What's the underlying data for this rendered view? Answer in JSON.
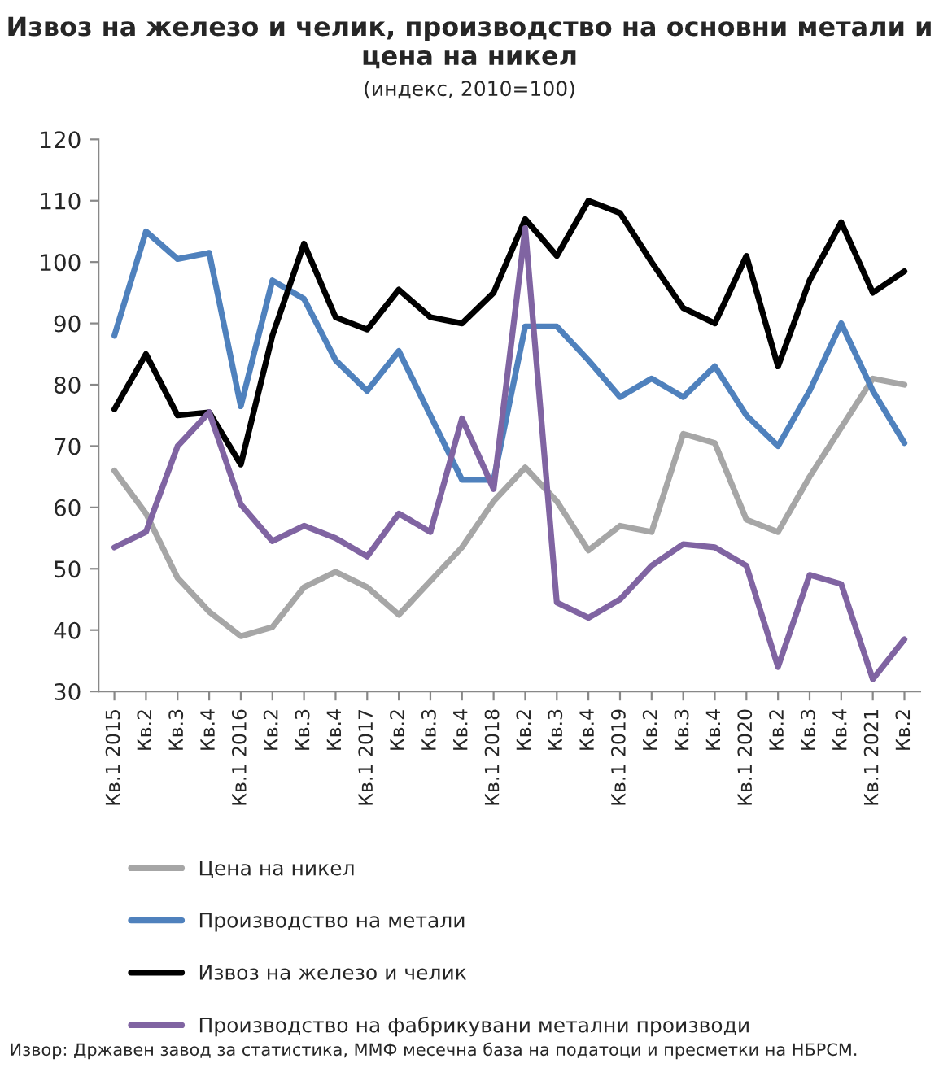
{
  "chart_data": {
    "type": "line",
    "title": "Извоз на железо и челик, производство на основни метали и цена на никел",
    "subtitle": "(индекс, 2010=100)",
    "categories": [
      "Кв.1 2015",
      "Кв.2",
      "Кв.3",
      "Кв.4",
      "Кв.1 2016",
      "Кв.2",
      "Кв.3",
      "Кв.4",
      "Кв.1 2017",
      "Кв.2",
      "Кв.3",
      "Кв.4",
      "Кв.1 2018",
      "Кв.2",
      "Кв.3",
      "Кв.4",
      "Кв.1 2019",
      "Кв.2",
      "Кв.3",
      "Кв.4",
      "Кв.1 2020",
      "Кв.2",
      "Кв.3",
      "Кв.4",
      "Кв.1 2021",
      "Кв.2"
    ],
    "series": [
      {
        "name": "Цена на никел",
        "color": "#a6a6a6",
        "values": [
          66,
          59,
          48.5,
          43,
          39,
          40.5,
          47,
          49.5,
          47,
          42.5,
          48,
          53.5,
          61,
          66.5,
          61,
          53,
          57,
          56,
          72,
          70.5,
          58,
          56,
          65,
          73,
          81,
          80
        ]
      },
      {
        "name": "Производство на метали",
        "color": "#4f81bd",
        "values": [
          88,
          105,
          100.5,
          101.5,
          76.5,
          97,
          94,
          84,
          79,
          85.5,
          75,
          64.5,
          64.5,
          89.5,
          89.5,
          84,
          78,
          81,
          78,
          83,
          75,
          70,
          79,
          90,
          79,
          70.5
        ]
      },
      {
        "name": "Извоз на железо и челик",
        "color": "#000000",
        "values": [
          76,
          85,
          75,
          75.5,
          67,
          88,
          103,
          91,
          89,
          95.5,
          91,
          90,
          95,
          107,
          101,
          110,
          108,
          100,
          92.5,
          90,
          101,
          83,
          97,
          106.5,
          95,
          98.5
        ]
      },
      {
        "name": "Производство на фабрикувани метални производи",
        "color": "#8064a2",
        "values": [
          53.5,
          56,
          70,
          75.5,
          60.5,
          54.5,
          57,
          55,
          52,
          59,
          56,
          74.5,
          63,
          105.5,
          44.5,
          42,
          45,
          50.5,
          54,
          53.5,
          50.5,
          34,
          49,
          47.5,
          32,
          38.5
        ]
      }
    ],
    "ylim": [
      30,
      120
    ],
    "yticks": [
      30,
      40,
      50,
      60,
      70,
      80,
      90,
      100,
      110,
      120
    ],
    "grid": false,
    "legend": "bottom",
    "marker": "none",
    "line_style": "solid",
    "annotations": [
      "Извор: Државен завод за статистика, ММФ месечна база на податоци и пресметки на НБРСМ."
    ]
  }
}
